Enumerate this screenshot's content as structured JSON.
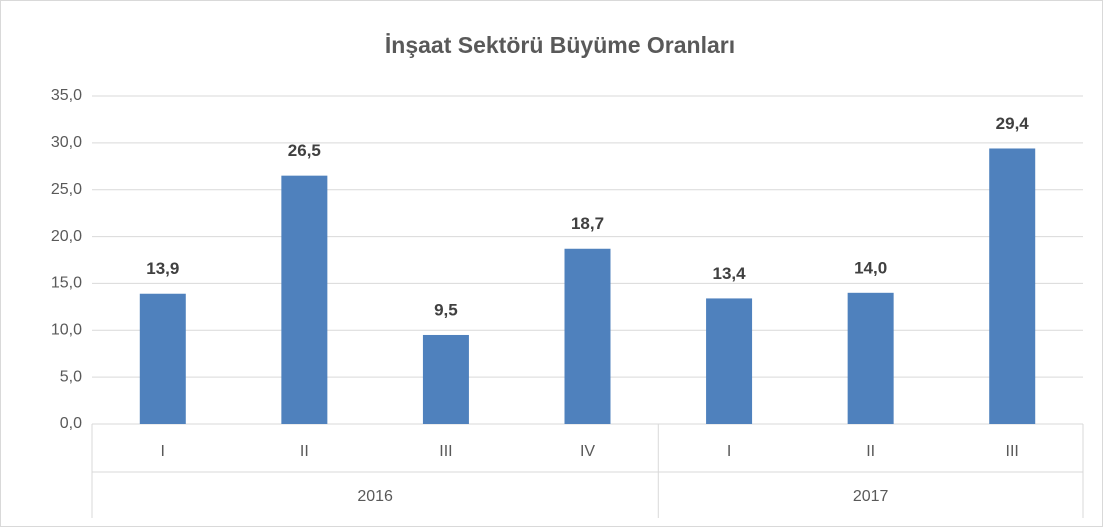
{
  "chart_data": {
    "type": "bar",
    "title": "İnşaat Sektörü Büyüme Oranları",
    "categories": [
      "I",
      "II",
      "III",
      "IV",
      "I",
      "II",
      "III"
    ],
    "groups": [
      {
        "label": "2016",
        "span": 4
      },
      {
        "label": "2017",
        "span": 3
      }
    ],
    "values": [
      13.9,
      26.5,
      9.5,
      18.7,
      13.4,
      14.0,
      29.4
    ],
    "value_labels": [
      "13,9",
      "26,5",
      "9,5",
      "18,7",
      "13,4",
      "14,0",
      "29,4"
    ],
    "color": "#4f81bd",
    "ylim": [
      0,
      35
    ],
    "yticks": [
      {
        "value": 0,
        "label": "0,0"
      },
      {
        "value": 5,
        "label": "5,0"
      },
      {
        "value": 10,
        "label": "10,0"
      },
      {
        "value": 15,
        "label": "15,0"
      },
      {
        "value": 20,
        "label": "20,0"
      },
      {
        "value": 25,
        "label": "25,0"
      },
      {
        "value": 30,
        "label": "30,0"
      },
      {
        "value": 35,
        "label": "35,0"
      }
    ],
    "grid": true
  }
}
